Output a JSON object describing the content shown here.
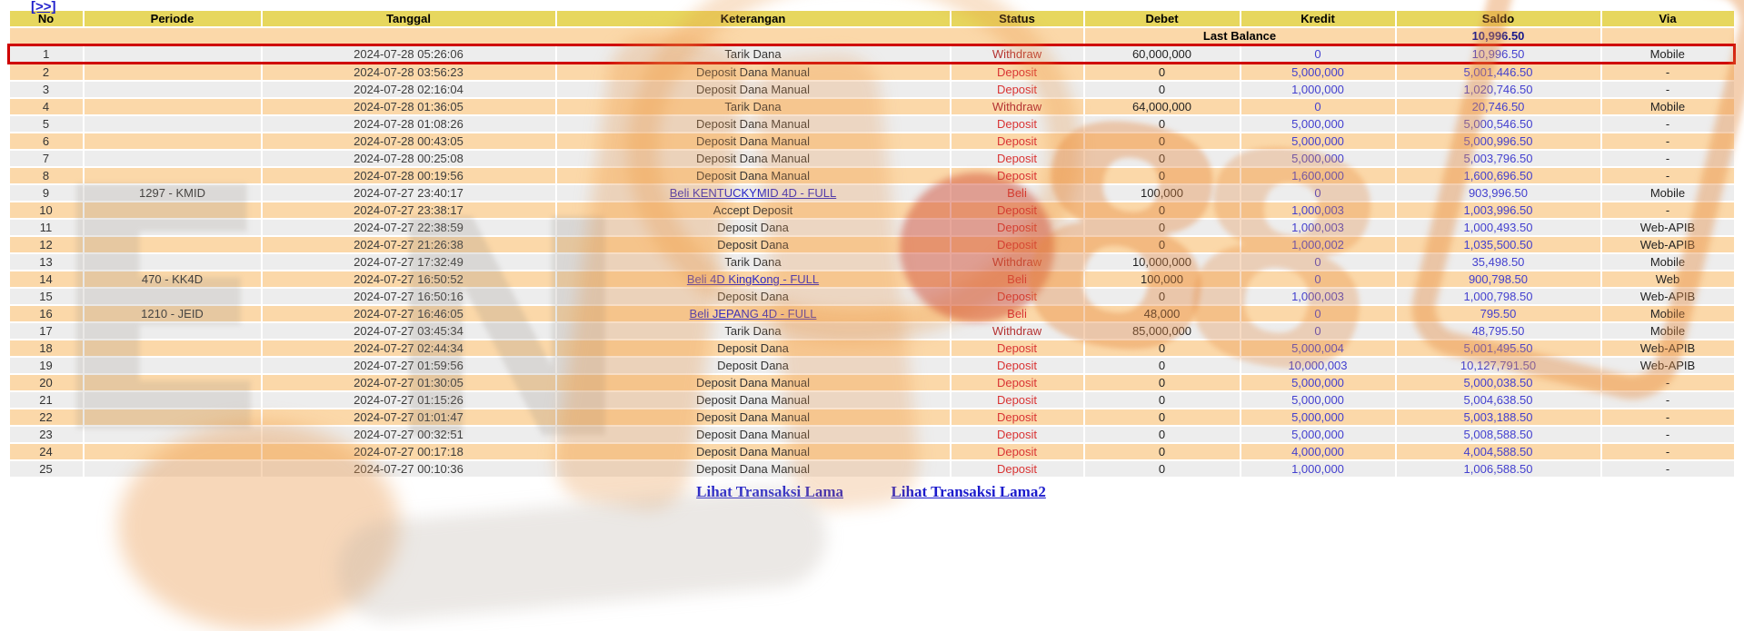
{
  "pagination": {
    "next_label": "[>>]"
  },
  "table": {
    "columns": [
      "No",
      "Periode",
      "Tanggal",
      "Keterangan",
      "Status",
      "Debet",
      "Kredit",
      "Saldo",
      "Via"
    ],
    "last_balance": {
      "label": "Last Balance",
      "saldo": "10,996.50"
    },
    "rows": [
      {
        "no": "1",
        "periode": "",
        "tanggal": "2024-07-28 05:26:06",
        "keterangan": "Tarik Dana",
        "link": false,
        "status": "Withdraw",
        "debet": "60,000,000",
        "kredit": "0",
        "saldo": "10,996.50",
        "via": "Mobile",
        "highlight": true
      },
      {
        "no": "2",
        "periode": "",
        "tanggal": "2024-07-28 03:56:23",
        "keterangan": "Deposit Dana Manual",
        "link": false,
        "status": "Deposit",
        "debet": "0",
        "kredit": "5,000,000",
        "saldo": "5,001,446.50",
        "via": "-",
        "highlight": false
      },
      {
        "no": "3",
        "periode": "",
        "tanggal": "2024-07-28 02:16:04",
        "keterangan": "Deposit Dana Manual",
        "link": false,
        "status": "Deposit",
        "debet": "0",
        "kredit": "1,000,000",
        "saldo": "1,020,746.50",
        "via": "-",
        "highlight": false
      },
      {
        "no": "4",
        "periode": "",
        "tanggal": "2024-07-28 01:36:05",
        "keterangan": "Tarik Dana",
        "link": false,
        "status": "Withdraw",
        "debet": "64,000,000",
        "kredit": "0",
        "saldo": "20,746.50",
        "via": "Mobile",
        "highlight": false
      },
      {
        "no": "5",
        "periode": "",
        "tanggal": "2024-07-28 01:08:26",
        "keterangan": "Deposit Dana Manual",
        "link": false,
        "status": "Deposit",
        "debet": "0",
        "kredit": "5,000,000",
        "saldo": "5,000,546.50",
        "via": "-",
        "highlight": false
      },
      {
        "no": "6",
        "periode": "",
        "tanggal": "2024-07-28 00:43:05",
        "keterangan": "Deposit Dana Manual",
        "link": false,
        "status": "Deposit",
        "debet": "0",
        "kredit": "5,000,000",
        "saldo": "5,000,996.50",
        "via": "-",
        "highlight": false
      },
      {
        "no": "7",
        "periode": "",
        "tanggal": "2024-07-28 00:25:08",
        "keterangan": "Deposit Dana Manual",
        "link": false,
        "status": "Deposit",
        "debet": "0",
        "kredit": "5,000,000",
        "saldo": "5,003,796.50",
        "via": "-",
        "highlight": false
      },
      {
        "no": "8",
        "periode": "",
        "tanggal": "2024-07-28 00:19:56",
        "keterangan": "Deposit Dana Manual",
        "link": false,
        "status": "Deposit",
        "debet": "0",
        "kredit": "1,600,000",
        "saldo": "1,600,696.50",
        "via": "-",
        "highlight": false
      },
      {
        "no": "9",
        "periode": "1297 - KMID",
        "tanggal": "2024-07-27 23:40:17",
        "keterangan": "Beli KENTUCKYMID 4D - FULL",
        "link": true,
        "status": "Beli",
        "debet": "100,000",
        "kredit": "0",
        "saldo": "903,996.50",
        "via": "Mobile",
        "highlight": false
      },
      {
        "no": "10",
        "periode": "",
        "tanggal": "2024-07-27 23:38:17",
        "keterangan": "Accept Deposit",
        "link": false,
        "status": "Deposit",
        "debet": "0",
        "kredit": "1,000,003",
        "saldo": "1,003,996.50",
        "via": "-",
        "highlight": false
      },
      {
        "no": "11",
        "periode": "",
        "tanggal": "2024-07-27 22:38:59",
        "keterangan": "Deposit Dana",
        "link": false,
        "status": "Deposit",
        "debet": "0",
        "kredit": "1,000,003",
        "saldo": "1,000,493.50",
        "via": "Web-APIB",
        "highlight": false
      },
      {
        "no": "12",
        "periode": "",
        "tanggal": "2024-07-27 21:26:38",
        "keterangan": "Deposit Dana",
        "link": false,
        "status": "Deposit",
        "debet": "0",
        "kredit": "1,000,002",
        "saldo": "1,035,500.50",
        "via": "Web-APIB",
        "highlight": false
      },
      {
        "no": "13",
        "periode": "",
        "tanggal": "2024-07-27 17:32:49",
        "keterangan": "Tarik Dana",
        "link": false,
        "status": "Withdraw",
        "debet": "10,000,000",
        "kredit": "0",
        "saldo": "35,498.50",
        "via": "Mobile",
        "highlight": false
      },
      {
        "no": "14",
        "periode": "470 - KK4D",
        "tanggal": "2024-07-27 16:50:52",
        "keterangan": "Beli 4D KingKong - FULL",
        "link": true,
        "status": "Beli",
        "debet": "100,000",
        "kredit": "0",
        "saldo": "900,798.50",
        "via": "Web",
        "highlight": false
      },
      {
        "no": "15",
        "periode": "",
        "tanggal": "2024-07-27 16:50:16",
        "keterangan": "Deposit Dana",
        "link": false,
        "status": "Deposit",
        "debet": "0",
        "kredit": "1,000,003",
        "saldo": "1,000,798.50",
        "via": "Web-APIB",
        "highlight": false
      },
      {
        "no": "16",
        "periode": "1210 - JEID",
        "tanggal": "2024-07-27 16:46:05",
        "keterangan": "Beli JEPANG 4D - FULL",
        "link": true,
        "status": "Beli",
        "debet": "48,000",
        "kredit": "0",
        "saldo": "795.50",
        "via": "Mobile",
        "highlight": false
      },
      {
        "no": "17",
        "periode": "",
        "tanggal": "2024-07-27 03:45:34",
        "keterangan": "Tarik Dana",
        "link": false,
        "status": "Withdraw",
        "debet": "85,000,000",
        "kredit": "0",
        "saldo": "48,795.50",
        "via": "Mobile",
        "highlight": false
      },
      {
        "no": "18",
        "periode": "",
        "tanggal": "2024-07-27 02:44:34",
        "keterangan": "Deposit Dana",
        "link": false,
        "status": "Deposit",
        "debet": "0",
        "kredit": "5,000,004",
        "saldo": "5,001,495.50",
        "via": "Web-APIB",
        "highlight": false
      },
      {
        "no": "19",
        "periode": "",
        "tanggal": "2024-07-27 01:59:56",
        "keterangan": "Deposit Dana",
        "link": false,
        "status": "Deposit",
        "debet": "0",
        "kredit": "10,000,003",
        "saldo": "10,127,791.50",
        "via": "Web-APIB",
        "highlight": false
      },
      {
        "no": "20",
        "periode": "",
        "tanggal": "2024-07-27 01:30:05",
        "keterangan": "Deposit Dana Manual",
        "link": false,
        "status": "Deposit",
        "debet": "0",
        "kredit": "5,000,000",
        "saldo": "5,000,038.50",
        "via": "-",
        "highlight": false
      },
      {
        "no": "21",
        "periode": "",
        "tanggal": "2024-07-27 01:15:26",
        "keterangan": "Deposit Dana Manual",
        "link": false,
        "status": "Deposit",
        "debet": "0",
        "kredit": "5,000,000",
        "saldo": "5,004,638.50",
        "via": "-",
        "highlight": false
      },
      {
        "no": "22",
        "periode": "",
        "tanggal": "2024-07-27 01:01:47",
        "keterangan": "Deposit Dana Manual",
        "link": false,
        "status": "Deposit",
        "debet": "0",
        "kredit": "5,000,000",
        "saldo": "5,003,188.50",
        "via": "-",
        "highlight": false
      },
      {
        "no": "23",
        "periode": "",
        "tanggal": "2024-07-27 00:32:51",
        "keterangan": "Deposit Dana Manual",
        "link": false,
        "status": "Deposit",
        "debet": "0",
        "kredit": "5,000,000",
        "saldo": "5,008,588.50",
        "via": "-",
        "highlight": false
      },
      {
        "no": "24",
        "periode": "",
        "tanggal": "2024-07-27 00:17:18",
        "keterangan": "Deposit Dana Manual",
        "link": false,
        "status": "Deposit",
        "debet": "0",
        "kredit": "4,000,000",
        "saldo": "4,004,588.50",
        "via": "-",
        "highlight": false
      },
      {
        "no": "25",
        "periode": "",
        "tanggal": "2024-07-27 00:10:36",
        "keterangan": "Deposit Dana Manual",
        "link": false,
        "status": "Deposit",
        "debet": "0",
        "kredit": "1,000,000",
        "saldo": "1,006,588.50",
        "via": "-",
        "highlight": false
      }
    ]
  },
  "footer": {
    "links": [
      "Lihat Transaksi Lama",
      "Lihat Transaksi Lama2"
    ]
  },
  "colors": {
    "header_bg": "#e7d75e",
    "row_odd": "#ededed",
    "row_even": "#fbd8a9",
    "status_red": "#d93434",
    "withdraw_red": "#b43232",
    "amount_blue": "#4340cf",
    "link_blue": "#2121cc",
    "last_balance_navy": "#19198c",
    "highlight_border": "#cf0000",
    "watermark_orange": "#e48a42"
  }
}
